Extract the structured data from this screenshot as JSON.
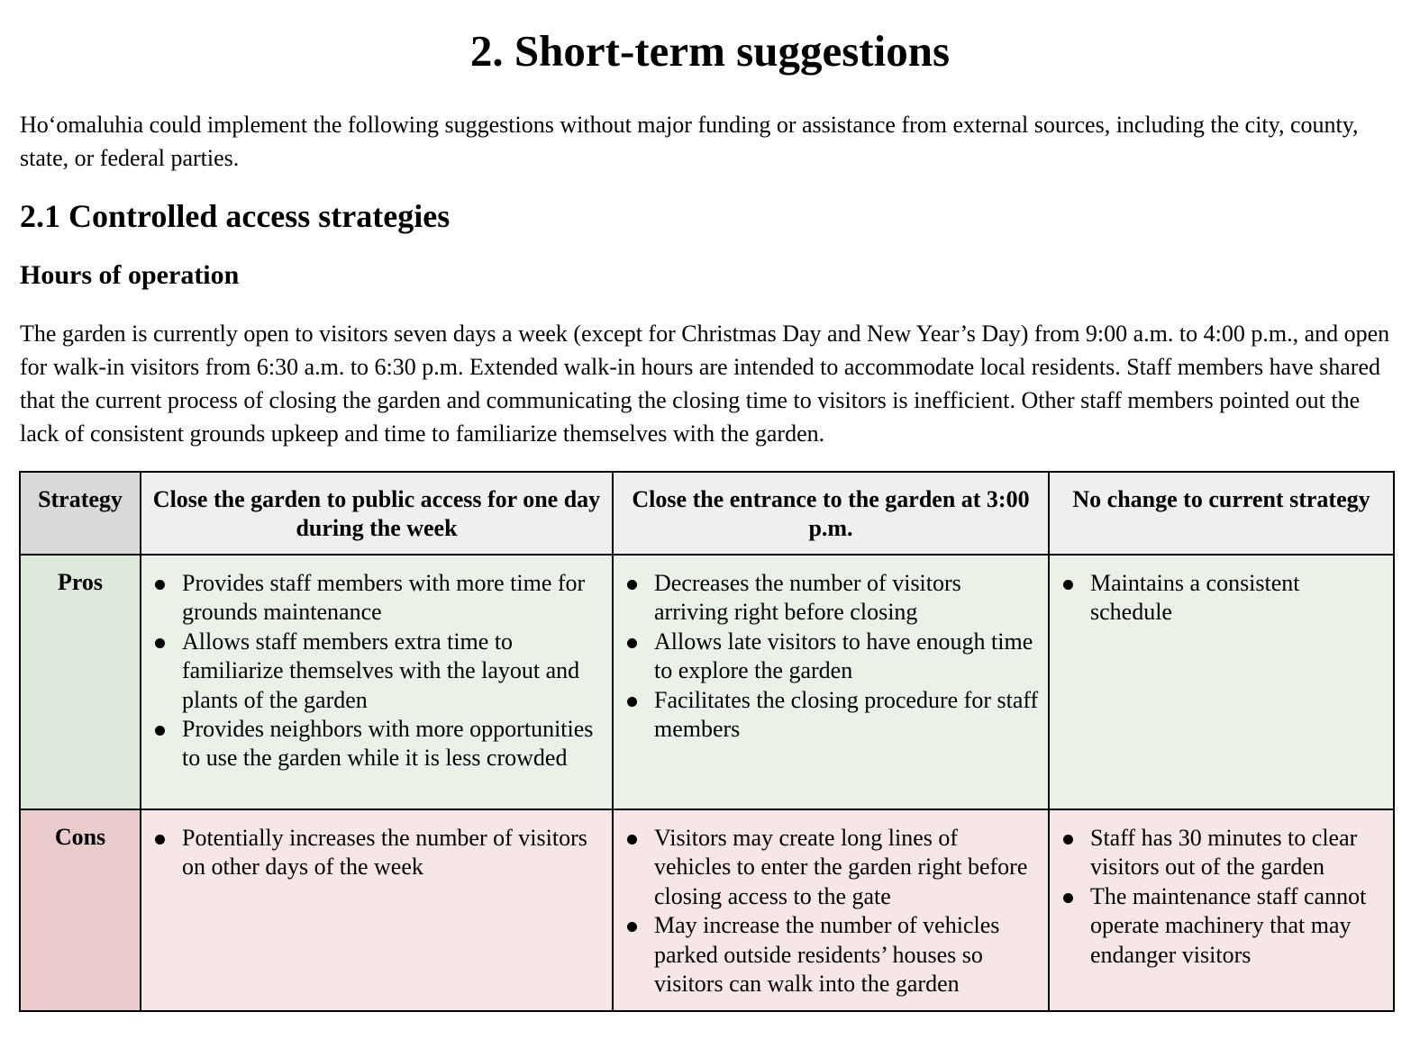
{
  "title": "2. Short-term suggestions",
  "intro": "Hoʻomaluhia could implement the following suggestions without major funding or assistance from external sources, including the city, county, state, or federal parties.",
  "section_heading": "2.1 Controlled access strategies",
  "subsection_heading": "Hours of operation",
  "paragraph": "The garden is currently open to visitors seven days a week (except for Christmas Day and New Year’s Day) from 9:00 a.m. to 4:00 p.m., and open for walk-in visitors from 6:30 a.m. to 6:30 p.m. Extended walk-in hours are intended to accommodate local residents. Staff members have shared that the current process of closing the garden and communicating the closing time to visitors is inefficient. Other staff members pointed out the lack of consistent grounds upkeep and time to familiarize themselves with the garden.",
  "colors": {
    "header_bg": "#efefef",
    "header_corner_bg": "#d9d9d9",
    "pros_bg": "#eaf2e8",
    "pros_label_bg": "#ddeadb",
    "cons_bg": "#f7e6e6",
    "cons_label_bg": "#ebcccc"
  },
  "table": {
    "corner_label": "Strategy",
    "columns": [
      "Close the garden to public access for one day during the week",
      "Close the entrance to the garden at 3:00 p.m.",
      "No change to current strategy"
    ],
    "pros_label": "Pros",
    "cons_label": "Cons",
    "pros": [
      [
        "Provides staff members with more time for grounds maintenance",
        "Allows staff members extra time to familiarize themselves with the layout and plants of the garden",
        "Provides neighbors with more opportunities to use the garden while it is less crowded"
      ],
      [
        "Decreases the number of visitors arriving right before closing",
        "Allows late visitors to have enough time to explore the garden",
        "Facilitates the closing procedure for staff members"
      ],
      [
        "Maintains a consistent schedule"
      ]
    ],
    "cons": [
      [
        "Potentially increases the number of visitors on other days of the week"
      ],
      [
        "Visitors may create long lines of vehicles to enter the garden right before closing access to the gate",
        "May increase the number of vehicles parked outside residents’ houses so visitors can walk into the garden"
      ],
      [
        "Staff has 30 minutes to clear visitors out of the garden",
        "The maintenance staff cannot operate machinery that may endanger visitors"
      ]
    ]
  }
}
